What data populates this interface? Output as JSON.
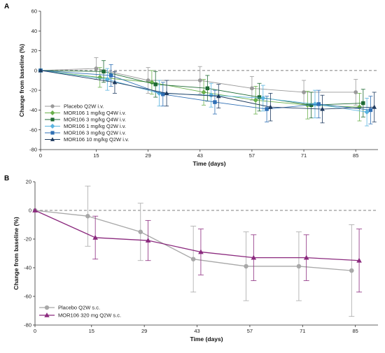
{
  "chart_data": [
    {
      "panel": "A",
      "type": "line",
      "xlabel": "Time (days)",
      "ylabel": "Change from baseline (%)",
      "xlim": [
        0,
        91
      ],
      "ylim": [
        -80,
        60
      ],
      "x_ticks": [
        0,
        15,
        29,
        43,
        57,
        71,
        85
      ],
      "y_ticks": [
        -80,
        -60,
        -40,
        -20,
        0,
        20,
        40,
        60
      ],
      "reference_line": 0,
      "legend_position": "bottom-left",
      "series": [
        {
          "name": "Placebo Q2W i.v.",
          "color": "#9a9a9a",
          "marker": "circle",
          "x": [
            0,
            15,
            29,
            43,
            57,
            71,
            85
          ],
          "y": [
            0,
            2,
            -10,
            -10,
            -18,
            -22,
            -22
          ],
          "err": [
            0,
            11,
            13,
            14,
            12,
            12,
            13
          ]
        },
        {
          "name": "MOR106 1 mg/kg Q4W i.v.",
          "color": "#6ab04c",
          "marker": "diamond",
          "x": [
            0,
            16,
            30,
            44,
            58,
            72,
            86
          ],
          "y": [
            0,
            -7,
            -12,
            -22,
            -30,
            -35,
            -37
          ],
          "err": [
            0,
            10,
            12,
            13,
            14,
            14,
            14
          ]
        },
        {
          "name": "MOR106 3 mg/kg Q4W i.v.",
          "color": "#1e6b34",
          "marker": "square",
          "x": [
            0,
            17,
            31,
            45,
            59,
            73,
            87
          ],
          "y": [
            0,
            -1,
            -14,
            -18,
            -27,
            -35,
            -33
          ],
          "err": [
            0,
            11,
            13,
            13,
            14,
            13,
            14
          ]
        },
        {
          "name": "MOR106 1 mg/kg Q2W i.v.",
          "color": "#5ab4e0",
          "marker": "diamond",
          "x": [
            0,
            18,
            32,
            46,
            60,
            74,
            88
          ],
          "y": [
            0,
            -9,
            -23,
            -25,
            -28,
            -34,
            -42
          ],
          "err": [
            0,
            11,
            13,
            12,
            13,
            14,
            14
          ]
        },
        {
          "name": "MOR106 3 mg/kg Q2W i.v.",
          "color": "#2f6fb5",
          "marker": "square",
          "x": [
            0,
            19,
            33,
            47,
            61,
            75,
            89
          ],
          "y": [
            0,
            -5,
            -24,
            -32,
            -39,
            -34,
            -40
          ],
          "err": [
            0,
            11,
            12,
            12,
            13,
            14,
            14
          ]
        },
        {
          "name": "MOR106 10 mg/kg Q2W i.v.",
          "color": "#1e3a5f",
          "marker": "triangle",
          "x": [
            0,
            20,
            34,
            48,
            62,
            76,
            90
          ],
          "y": [
            0,
            -12,
            -23,
            -26,
            -37,
            -39,
            -37
          ],
          "err": [
            0,
            11,
            13,
            12,
            14,
            14,
            15
          ]
        }
      ]
    },
    {
      "panel": "B",
      "type": "line",
      "xlabel": "Time (days)",
      "ylabel": "Change from baseline (%)",
      "xlim": [
        0,
        91
      ],
      "ylim": [
        -80,
        20
      ],
      "x_ticks": [
        0,
        15,
        29,
        43,
        57,
        71,
        85
      ],
      "y_ticks": [
        -80,
        -60,
        -40,
        -20,
        0,
        20
      ],
      "reference_line": 0,
      "legend_position": "bottom-left",
      "series": [
        {
          "name": "Placebo Q2W s.c.",
          "color": "#a8a8a8",
          "marker": "circle",
          "x": [
            0,
            14,
            28,
            42,
            56,
            70,
            84
          ],
          "y": [
            0,
            -4,
            -15,
            -34,
            -39,
            -39,
            -42
          ],
          "err": [
            0,
            21,
            20,
            23,
            24,
            24,
            32
          ]
        },
        {
          "name": "MOR106 320 mg Q2W s.c.",
          "color": "#8b2a7e",
          "marker": "triangle",
          "x": [
            0,
            16,
            30,
            44,
            58,
            72,
            86
          ],
          "y": [
            0,
            -19,
            -21,
            -29,
            -33,
            -33,
            -35
          ],
          "err": [
            0,
            15,
            14,
            16,
            16,
            16,
            22
          ]
        }
      ]
    }
  ]
}
